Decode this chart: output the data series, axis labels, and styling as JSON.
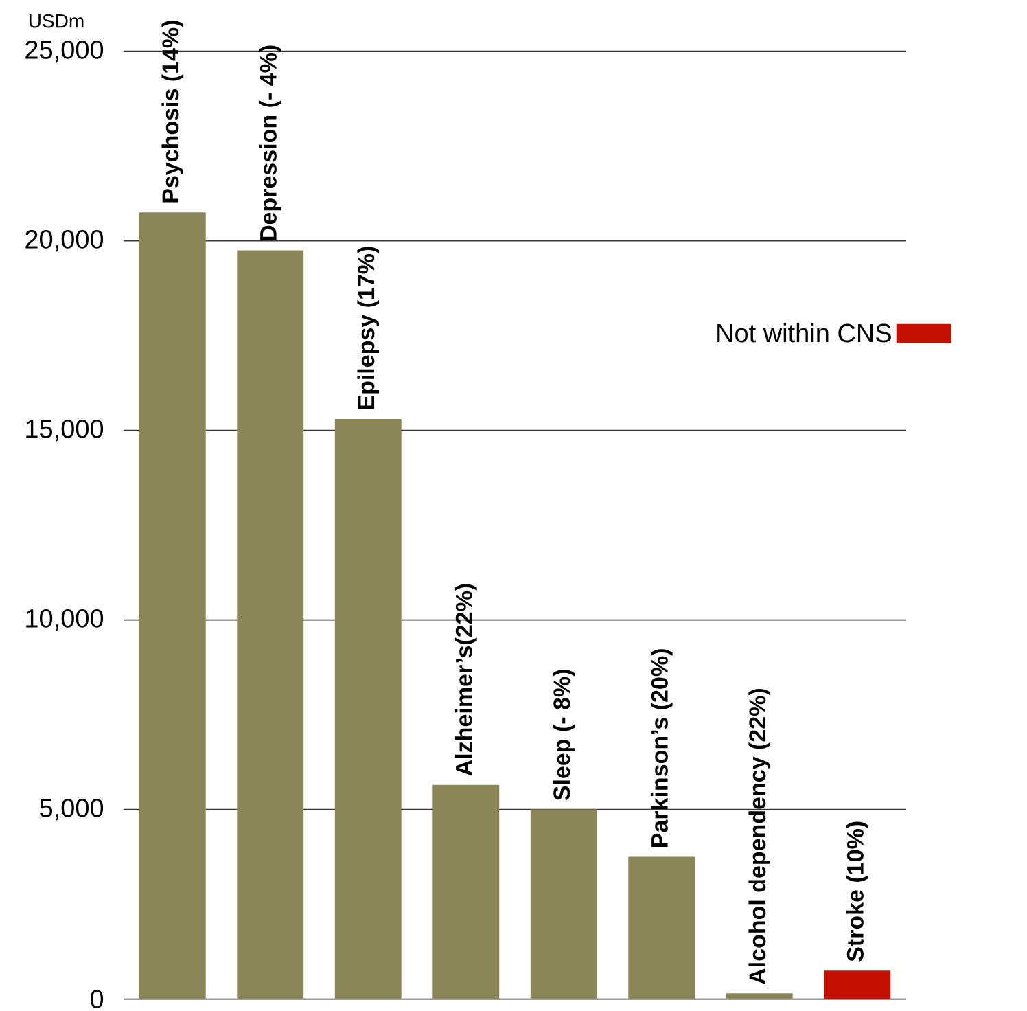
{
  "chart_data": {
    "type": "bar",
    "ylabel": "USDm",
    "categories": [
      "Psychosis (14%)",
      "Depression (- 4%)",
      "Epilepsy (17%)",
      "Alzheimer’s(22%)",
      "Sleep (- 8%)",
      "Parkinson’s (20%)",
      "Alcohol dependency (22%)",
      "Stroke (10%)"
    ],
    "series": [
      {
        "color": "#8b8658",
        "values": [
          20750,
          19750,
          15300,
          5650,
          5000,
          3750,
          150,
          null
        ]
      },
      {
        "name": "Not within CNS",
        "color": "#c50f00",
        "values": [
          null,
          null,
          null,
          null,
          null,
          null,
          null,
          750
        ]
      }
    ],
    "stacked": true,
    "ylim": [
      0,
      25000
    ],
    "yticks": [
      0,
      {
        "value": 5000,
        "label": "5,000"
      },
      {
        "value": 10000,
        "label": "10,000"
      },
      {
        "value": 15000,
        "label": "15,000"
      },
      {
        "value": 20000,
        "label": "20,000"
      },
      {
        "value": 25000,
        "label": "25,000"
      }
    ],
    "grid": "y",
    "legend": "top right"
  }
}
